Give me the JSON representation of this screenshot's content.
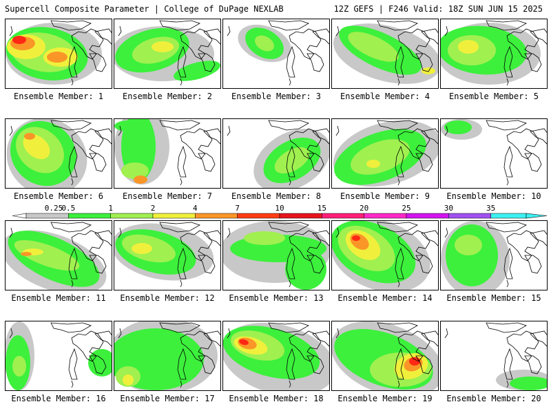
{
  "header": {
    "title_left": "Supercell Composite Parameter | College of DuPage NEXLAB",
    "title_right": "12Z GEFS | F246 Valid: 18Z SUN JUN 15 2025"
  },
  "panels": [
    {
      "label": "Ensemble Member: 1"
    },
    {
      "label": "Ensemble Member: 2"
    },
    {
      "label": "Ensemble Member: 3"
    },
    {
      "label": "Ensemble Member: 4"
    },
    {
      "label": "Ensemble Member: 5"
    },
    {
      "label": "Ensemble Member: 6"
    },
    {
      "label": "Ensemble Member: 7"
    },
    {
      "label": "Ensemble Member: 8"
    },
    {
      "label": "Ensemble Member: 9"
    },
    {
      "label": "Ensemble Member: 10"
    },
    {
      "label": "Ensemble Member: 11"
    },
    {
      "label": "Ensemble Member: 12"
    },
    {
      "label": "Ensemble Member: 13"
    },
    {
      "label": "Ensemble Member: 14"
    },
    {
      "label": "Ensemble Member: 15"
    },
    {
      "label": "Ensemble Member: 16"
    },
    {
      "label": "Ensemble Member: 17"
    },
    {
      "label": "Ensemble Member: 18"
    },
    {
      "label": "Ensemble Member: 19"
    },
    {
      "label": "Ensemble Member: 20"
    }
  ],
  "colorbar": {
    "labels": [
      "0.25",
      "0.5",
      "1",
      "2",
      "4",
      "7",
      "10",
      "15",
      "20",
      "25",
      "30",
      "35"
    ],
    "colors": [
      "#c8c8c8",
      "#3cf03c",
      "#a0f050",
      "#f0f03c",
      "#fa9628",
      "#ff3c14",
      "#e6141e",
      "#ff1e78",
      "#ff28c8",
      "#d214f0",
      "#a050f0",
      "#3cf0f0"
    ]
  },
  "map_colors": {
    "grey": "#c8c8c8",
    "green": "#3cf03c",
    "lime": "#a0f050",
    "yellow": "#f0f03c",
    "orange": "#fa9628",
    "red": "#ff2814"
  }
}
